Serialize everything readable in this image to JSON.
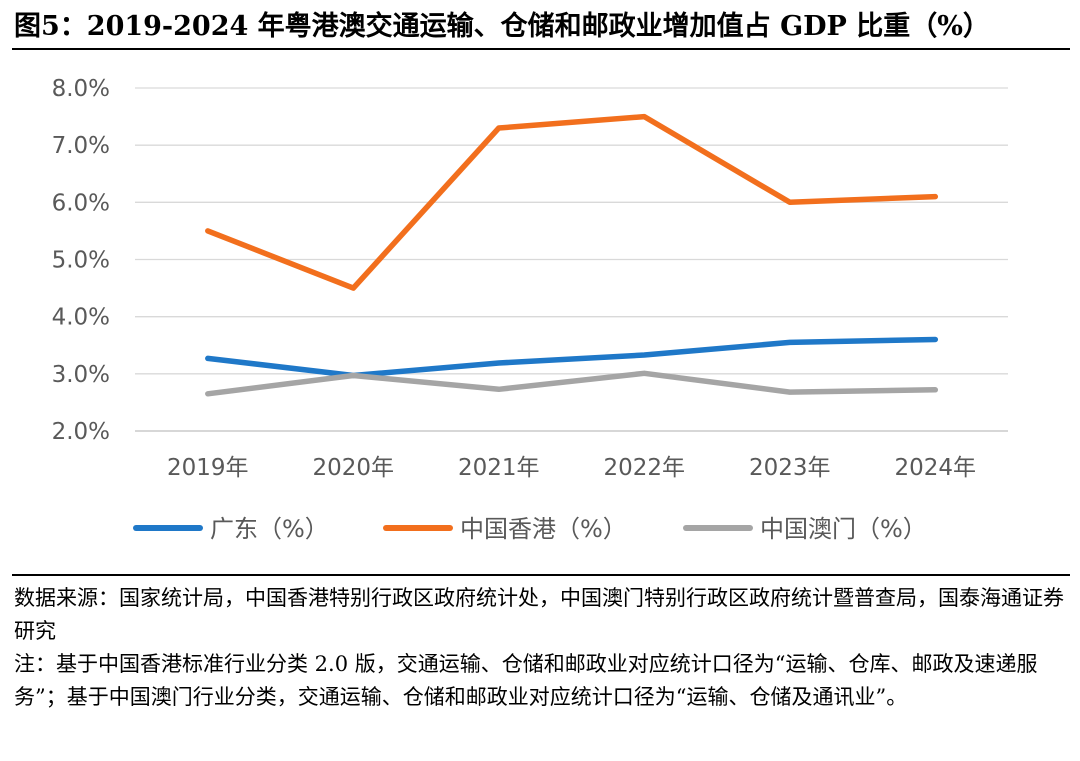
{
  "title": "图5：2019-2024 年粤港澳交通运输、仓储和邮政业增加值占 GDP 比重（%）",
  "chart_data": {
    "type": "line",
    "categories": [
      "2019年",
      "2020年",
      "2021年",
      "2022年",
      "2023年",
      "2024年"
    ],
    "y_ticks": [
      "2.0%",
      "3.0%",
      "4.0%",
      "5.0%",
      "6.0%",
      "7.0%",
      "8.0%"
    ],
    "ylim": [
      2.0,
      8.0
    ],
    "grid": true,
    "legend_position": "bottom",
    "series": [
      {
        "name": "广东（%）",
        "color": "#1f78c8",
        "values": [
          3.27,
          2.97,
          3.19,
          3.33,
          3.55,
          3.6
        ]
      },
      {
        "name": "中国香港（%）",
        "color": "#f26f1d",
        "values": [
          5.5,
          4.5,
          7.3,
          7.5,
          6.0,
          6.1
        ]
      },
      {
        "name": "中国澳门（%）",
        "color": "#a5a5a5",
        "values": [
          2.65,
          2.97,
          2.73,
          3.01,
          2.68,
          2.72
        ]
      }
    ]
  },
  "source": "数据来源：国家统计局，中国香港特别行政区政府统计处，中国澳门特别行政区政府统计暨普查局，国泰海通证券研究",
  "note": "注：基于中国香港标准行业分类 2.0 版，交通运输、仓储和邮政业对应统计口径为“运输、仓库、邮政及速递服务”；基于中国澳门行业分类，交通运输、仓储和邮政业对应统计口径为“运输、仓储及通讯业”。"
}
